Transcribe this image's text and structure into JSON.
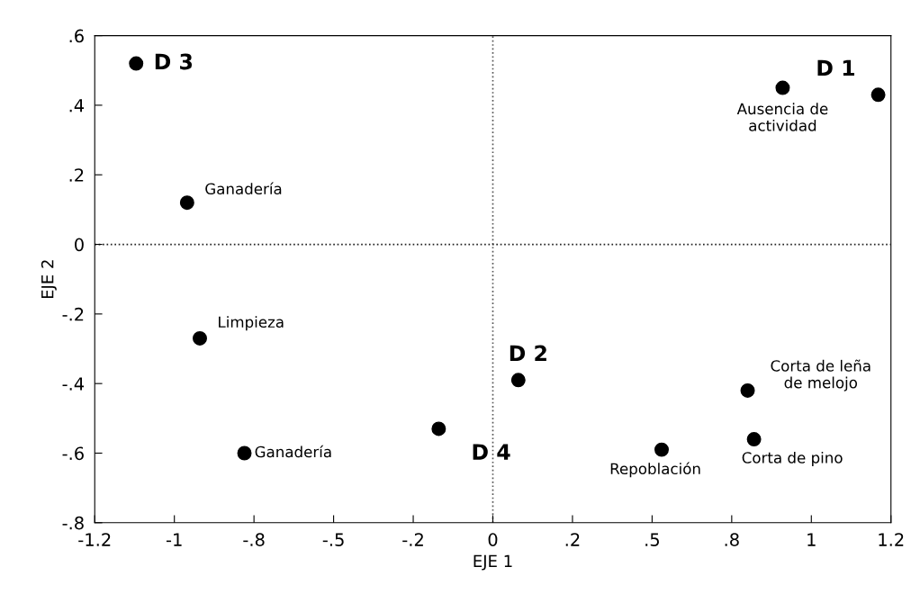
{
  "chart_data": {
    "type": "scatter",
    "xlabel": "EJE 1",
    "ylabel": "EJE 2",
    "x": [
      -1.12,
      0.91,
      1.21,
      -0.96,
      -0.92,
      -0.78,
      -0.17,
      0.08,
      0.53,
      0.8,
      0.82
    ],
    "series": [
      {
        "color": "#000000",
        "values": [
          0.52,
          0.45,
          0.43,
          0.12,
          -0.27,
          -0.6,
          -0.53,
          -0.39,
          -0.59,
          -0.42,
          -0.56
        ]
      }
    ],
    "marker": "circle",
    "grid": false,
    "legend": false,
    "xlim": [
      -1.25,
      1.25
    ],
    "ylim": [
      -0.8,
      0.6
    ],
    "xticks": [
      {
        "value": -1.25,
        "label": "-1.2"
      },
      -1,
      {
        "value": -0.75,
        "label": "-.8"
      },
      {
        "value": -0.5,
        "label": "-.5"
      },
      {
        "value": -0.25,
        "label": "-.2"
      },
      0,
      {
        "value": 0.25,
        "label": ".2"
      },
      {
        "value": 0.5,
        "label": ".5"
      },
      {
        "value": 0.75,
        "label": ".8"
      },
      1,
      {
        "value": 1.25,
        "label": "1.2"
      }
    ],
    "yticks": [
      {
        "value": -0.8,
        "label": "-.8"
      },
      {
        "value": -0.6,
        "label": "-.6"
      },
      {
        "value": -0.4,
        "label": "-.4"
      },
      {
        "value": -0.2,
        "label": "-.2"
      },
      0,
      {
        "value": 0.2,
        "label": ".2"
      },
      {
        "value": 0.4,
        "label": ".4"
      },
      {
        "value": 0.6,
        "label": ".6"
      }
    ],
    "ref_lines": [
      {
        "axis": "x",
        "value": 0,
        "line_style": "dotted",
        "color": "#555555"
      },
      {
        "axis": "y",
        "value": 0,
        "line_style": "dotted",
        "color": "#222222"
      }
    ],
    "annotations": [
      {
        "text": "D 3",
        "x": -1.12,
        "y": 0.52
      },
      {
        "text": "Ausencia de\nactividad",
        "x": 0.91,
        "y": 0.45
      },
      {
        "text": "D 1",
        "x": 1.21,
        "y": 0.43
      },
      {
        "text": "Ganadería",
        "x": -0.96,
        "y": 0.12
      },
      {
        "text": "Limpieza",
        "x": -0.92,
        "y": -0.27
      },
      {
        "text": "Ganadería",
        "x": -0.78,
        "y": -0.6
      },
      {
        "text": "D 4",
        "x": -0.17,
        "y": -0.53
      },
      {
        "text": "D 2",
        "x": 0.08,
        "y": -0.39
      },
      {
        "text": "Repoblación",
        "x": 0.53,
        "y": -0.59
      },
      {
        "text": "Corta de leña\nde melojo",
        "x": 0.8,
        "y": -0.42
      },
      {
        "text": "Corta de pino",
        "x": 0.82,
        "y": -0.56
      }
    ]
  }
}
